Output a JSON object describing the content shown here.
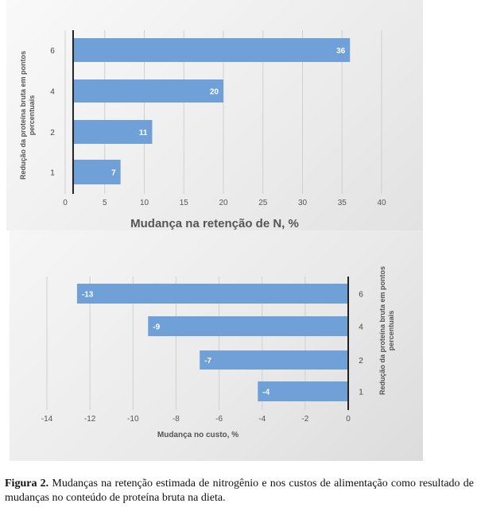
{
  "chart_data": [
    {
      "type": "bar",
      "orientation": "horizontal",
      "categories": [
        "1",
        "2",
        "4",
        "6"
      ],
      "values": [
        7,
        11,
        20,
        36
      ],
      "data_labels": [
        "7",
        "11",
        "20",
        "36"
      ],
      "xlabel": "Mudança  na retenção de N, %",
      "ylabel": "Redução da proteína bruta em pontos percentuais",
      "xticks": [
        "0",
        "5",
        "10",
        "15",
        "20",
        "25",
        "30",
        "35",
        "40"
      ],
      "xlim": [
        0,
        40
      ],
      "grid": true,
      "bar_color": "#6fa1d8"
    },
    {
      "type": "bar",
      "orientation": "horizontal",
      "categories": [
        "1",
        "2",
        "4",
        "6"
      ],
      "values": [
        -4.2,
        -6.9,
        -9.3,
        -12.6
      ],
      "data_labels": [
        "-4",
        "-7",
        "-9",
        "-13"
      ],
      "xlabel": "Mudança  no custo, %",
      "ylabel": "Redução da proteína bruta em pontos percentuais",
      "xticks": [
        "-14",
        "-12",
        "-10",
        "-8",
        "-6",
        "-4",
        "-2",
        "0"
      ],
      "xlim": [
        -14,
        0
      ],
      "grid": true,
      "bar_color": "#6fa1d8"
    }
  ],
  "caption": {
    "label": "Figura 2.",
    "text": " Mudanças na retenção estimada de nitrogênio e nos custos de alimentação como resultado de mudanças no conteúdo de proteína bruta na dieta."
  }
}
